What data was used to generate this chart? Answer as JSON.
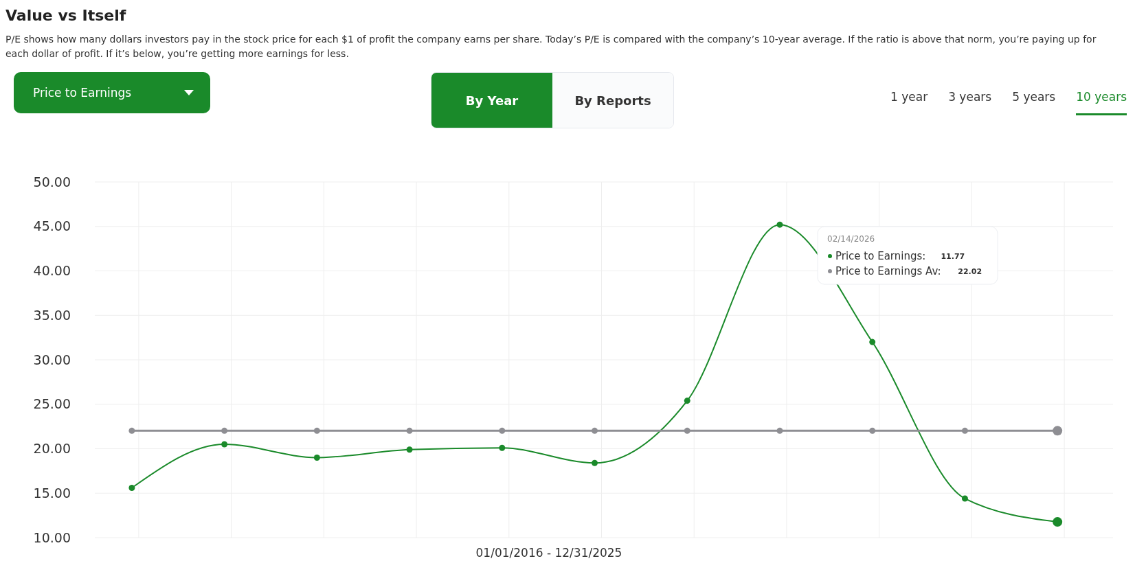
{
  "chart_data": {
    "type": "line",
    "title": "Value vs Itself",
    "subtitle": "P/E shows how many dollars investors pay in the stock price for each $1 of profit the company earns per share. Today’s P/E is compared with the company’s 10-year average. If the ratio is above that norm, you’re paying up for each dollar of profit. If it’s below, you’re getting more earnings for less.",
    "xlabel": "01/01/2016 - 12/31/2025",
    "categories": [
      null,
      null,
      null,
      null,
      null,
      null,
      null,
      null,
      null,
      null,
      null
    ],
    "series": [
      {
        "name": "Price to Earnings:",
        "color": "#1a8a2a",
        "values": [
          15.6,
          20.5,
          19.0,
          19.9,
          20.1,
          18.4,
          25.4,
          45.2,
          32.0,
          14.4,
          11.77
        ]
      },
      {
        "name": "Price to Earnings Av:",
        "color": "#8e8e93",
        "values": [
          22.02,
          22.02,
          22.02,
          22.02,
          22.02,
          22.02,
          22.02,
          22.02,
          22.02,
          22.02,
          22.02
        ]
      }
    ],
    "ylim": [
      10,
      50
    ],
    "yticks": [
      {
        "value": 10,
        "label": "10.00"
      },
      {
        "value": 15,
        "label": "15.00"
      },
      {
        "value": 20,
        "label": "20.00"
      },
      {
        "value": 25,
        "label": "25.00"
      },
      {
        "value": 30,
        "label": "30.00"
      },
      {
        "value": 35,
        "label": "35.00"
      },
      {
        "value": 40,
        "label": "40.00"
      },
      {
        "value": 45,
        "label": "45.00"
      },
      {
        "value": 50,
        "label": "50.00"
      }
    ],
    "grid": true,
    "legend": "top right",
    "marker": "circle",
    "line_style": "solid",
    "annotations": [
      "Price to Earnings",
      "By Year",
      "By Reports",
      "1 year",
      "3 years",
      "5 years",
      "10 years",
      "02/14/2026",
      "11.77",
      "22.02"
    ]
  }
}
